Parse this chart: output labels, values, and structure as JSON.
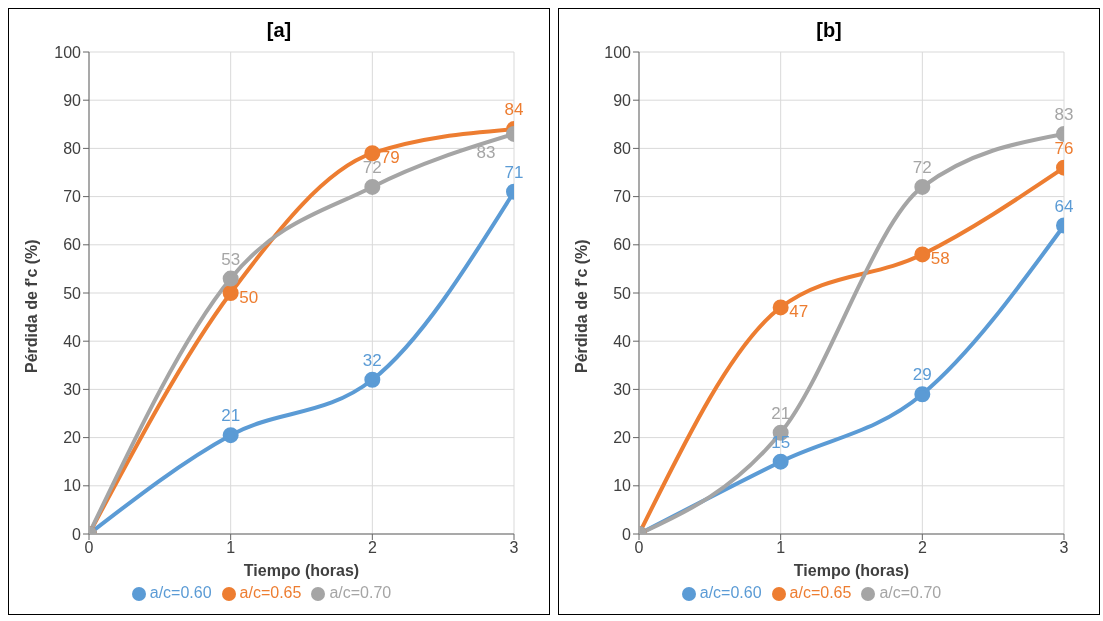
{
  "chart_data": [
    {
      "type": "line",
      "title": "[a]",
      "xlabel": "Tiempo (horas)",
      "ylabel": "Pérdida  de f'c (%)",
      "x": [
        0,
        1,
        2,
        3
      ],
      "xlim": [
        0,
        3
      ],
      "xticks": [
        0,
        1,
        2,
        3
      ],
      "ylim": [
        0,
        100
      ],
      "yticks": [
        0,
        10,
        20,
        30,
        40,
        50,
        60,
        70,
        80,
        90,
        100
      ],
      "grid": true,
      "legend": "bottom",
      "marker": "circle",
      "line_style": "solid",
      "series": [
        {
          "name": "a/c=0.60",
          "color": "#5b9bd5",
          "values": [
            0,
            20.5,
            32,
            71
          ],
          "value_labels": [
            null,
            "21",
            "32",
            "71"
          ]
        },
        {
          "name": "a/c=0.65",
          "color": "#ed7d31",
          "values": [
            0,
            50,
            79,
            84
          ],
          "value_labels": [
            null,
            "50",
            "79",
            "84"
          ]
        },
        {
          "name": "a/c=0.70",
          "color": "#a5a5a5",
          "values": [
            0,
            53,
            72,
            83
          ],
          "value_labels": [
            null,
            "53",
            "72",
            "83"
          ]
        }
      ]
    },
    {
      "type": "line",
      "title": "[b]",
      "xlabel": "Tiempo (horas)",
      "ylabel": "Pérdida  de f'c (%)",
      "x": [
        0,
        1,
        2,
        3
      ],
      "xlim": [
        0,
        3
      ],
      "xticks": [
        0,
        1,
        2,
        3
      ],
      "ylim": [
        0,
        100
      ],
      "yticks": [
        0,
        10,
        20,
        30,
        40,
        50,
        60,
        70,
        80,
        90,
        100
      ],
      "grid": true,
      "legend": "bottom",
      "marker": "circle",
      "line_style": "solid",
      "series": [
        {
          "name": "a/c=0.60",
          "color": "#5b9bd5",
          "values": [
            0,
            15,
            29,
            64
          ],
          "value_labels": [
            null,
            "15",
            "29",
            "64"
          ]
        },
        {
          "name": "a/c=0.65",
          "color": "#ed7d31",
          "values": [
            0,
            47,
            58,
            76
          ],
          "value_labels": [
            null,
            "47",
            "58",
            "76"
          ]
        },
        {
          "name": "a/c=0.70",
          "color": "#a5a5a5",
          "values": [
            0,
            21,
            72,
            83
          ],
          "value_labels": [
            null,
            "21",
            "72",
            "83"
          ]
        }
      ]
    }
  ]
}
